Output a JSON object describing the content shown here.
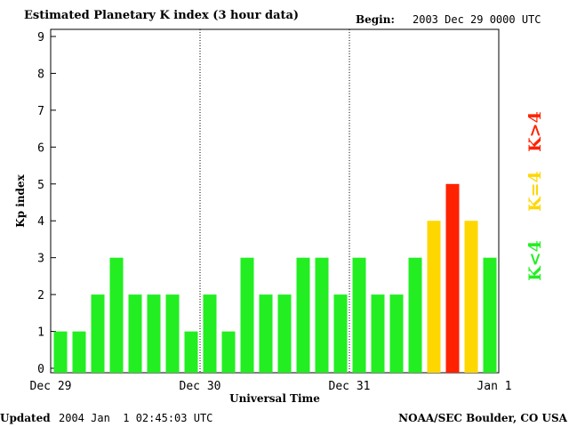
{
  "header": {
    "title": "Estimated Planetary K index (3 hour data)",
    "begin_label": "Begin:",
    "begin_value": "2003 Dec 29 0000 UTC"
  },
  "footer": {
    "updated_label": "Updated",
    "updated_value": "2004 Jan  1 02:45:03 UTC",
    "source": "NOAA/SEC Boulder, CO USA"
  },
  "legend": [
    {
      "label": "K<4",
      "color": "#22ee22"
    },
    {
      "label": "K=4",
      "color": "#ffd700"
    },
    {
      "label": "K>4",
      "color": "#ff2200"
    }
  ],
  "chart_data": {
    "type": "bar",
    "title": "Estimated Planetary K index (3 hour data)",
    "xlabel": "Universal Time",
    "ylabel": "Kp index",
    "ylim": [
      0,
      9
    ],
    "yticks": [
      "0",
      "1",
      "2",
      "3",
      "4",
      "5",
      "6",
      "7",
      "8",
      "9"
    ],
    "day_labels": [
      "Dec 29",
      "Dec 30",
      "Dec 31",
      "Jan 1"
    ],
    "day_separators_dotted": true,
    "categories": [
      "Dec 29 00",
      "Dec 29 03",
      "Dec 29 06",
      "Dec 29 09",
      "Dec 29 12",
      "Dec 29 15",
      "Dec 29 18",
      "Dec 29 21",
      "Dec 30 00",
      "Dec 30 03",
      "Dec 30 06",
      "Dec 30 09",
      "Dec 30 12",
      "Dec 30 15",
      "Dec 30 18",
      "Dec 30 21",
      "Dec 31 00",
      "Dec 31 03",
      "Dec 31 06",
      "Dec 31 09",
      "Dec 31 12",
      "Dec 31 15",
      "Dec 31 18",
      "Dec 31 21"
    ],
    "values": [
      1,
      1,
      2,
      3,
      2,
      2,
      2,
      1,
      2,
      1,
      3,
      2,
      2,
      3,
      3,
      2,
      3,
      2,
      2,
      3,
      4,
      5,
      4,
      3
    ],
    "colors": {
      "low": "#22ee22",
      "equal": "#ffd700",
      "high": "#ff2200"
    }
  }
}
